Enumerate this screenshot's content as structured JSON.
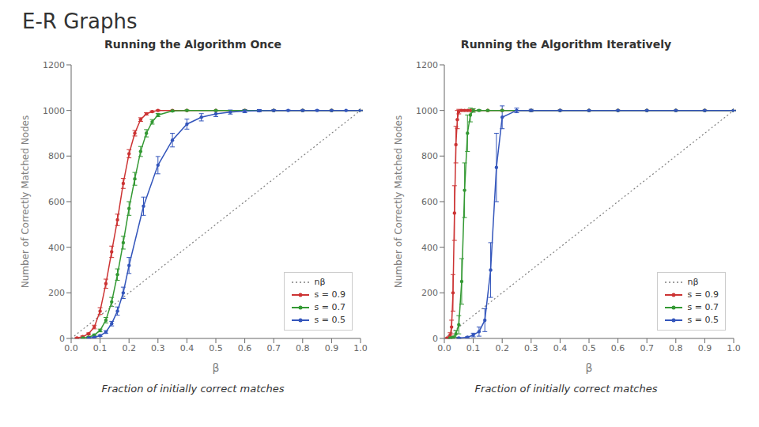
{
  "title": "E-R Graphs",
  "chart_data": [
    {
      "type": "line",
      "title": "Running the Algorithm Once",
      "xlabel": "β",
      "ylabel": "Number of Correctly Matched Nodes",
      "annotation": "Fraction of initially correct matches",
      "xlim": [
        0,
        1
      ],
      "ylim": [
        0,
        1200
      ],
      "xticks": [
        {
          "value": 0,
          "label": "0.0"
        },
        0.1,
        0.2,
        0.3,
        0.4,
        0.5,
        0.6,
        0.7,
        0.8,
        0.9,
        {
          "value": 1,
          "label": "1.0"
        }
      ],
      "yticks": [
        0,
        200,
        400,
        600,
        800,
        1000,
        1200
      ],
      "grid": false,
      "legend": "lower right",
      "series": [
        {
          "name": "nβ",
          "color": "gray",
          "line_style": "dotted",
          "marker": "none",
          "x": [
            0,
            1
          ],
          "values": [
            0,
            1000
          ]
        },
        {
          "name": "s = 0.9",
          "color": "#cc3333",
          "line_style": "solid",
          "marker": "circle",
          "x": [
            0.02,
            0.04,
            0.06,
            0.08,
            0.1,
            0.12,
            0.14,
            0.16,
            0.18,
            0.2,
            0.22,
            0.24,
            0.26,
            0.28,
            0.3,
            0.35,
            0.4,
            0.5,
            0.6,
            0.7,
            0.8,
            0.9,
            1.0
          ],
          "values": [
            2,
            8,
            20,
            50,
            120,
            240,
            380,
            520,
            680,
            810,
            900,
            960,
            985,
            995,
            1000,
            1000,
            1000,
            1000,
            1000,
            1000,
            1000,
            1000,
            1000
          ],
          "yerr": [
            2,
            3,
            4,
            8,
            15,
            20,
            25,
            25,
            22,
            18,
            12,
            8,
            5,
            3,
            2,
            1,
            1,
            1,
            1,
            1,
            1,
            1,
            1
          ]
        },
        {
          "name": "s = 0.7",
          "color": "#339933",
          "line_style": "solid",
          "marker": "circle",
          "x": [
            0.04,
            0.06,
            0.08,
            0.1,
            0.12,
            0.14,
            0.16,
            0.18,
            0.2,
            0.22,
            0.24,
            0.26,
            0.28,
            0.3,
            0.35,
            0.4,
            0.5,
            0.6,
            0.7,
            0.8,
            0.9,
            1.0
          ],
          "values": [
            2,
            5,
            15,
            35,
            80,
            160,
            280,
            420,
            570,
            700,
            820,
            900,
            950,
            980,
            998,
            1000,
            1000,
            1000,
            1000,
            1000,
            1000,
            1000
          ],
          "yerr": [
            1,
            2,
            4,
            6,
            12,
            20,
            25,
            28,
            30,
            28,
            22,
            16,
            10,
            7,
            3,
            2,
            1,
            1,
            1,
            1,
            1,
            1
          ]
        },
        {
          "name": "s = 0.5",
          "color": "#3355bb",
          "line_style": "solid",
          "marker": "circle",
          "x": [
            0.06,
            0.08,
            0.1,
            0.12,
            0.14,
            0.16,
            0.18,
            0.2,
            0.25,
            0.3,
            0.35,
            0.4,
            0.45,
            0.5,
            0.55,
            0.6,
            0.65,
            0.7,
            0.75,
            0.8,
            0.85,
            0.9,
            0.95,
            1.0
          ],
          "values": [
            2,
            5,
            12,
            28,
            65,
            120,
            200,
            320,
            580,
            760,
            870,
            940,
            970,
            985,
            993,
            997,
            999,
            1000,
            1000,
            1000,
            1000,
            1000,
            1000,
            1000
          ],
          "yerr": [
            1,
            2,
            3,
            6,
            10,
            18,
            25,
            35,
            40,
            38,
            30,
            22,
            16,
            12,
            9,
            7,
            5,
            3,
            2,
            2,
            2,
            1,
            1,
            1
          ]
        }
      ]
    },
    {
      "type": "line",
      "title": "Running the Algorithm Iteratively",
      "xlabel": "β",
      "ylabel": "Number of Correctly Matched Nodes",
      "annotation": "Fraction of initially correct matches",
      "xlim": [
        0,
        1
      ],
      "ylim": [
        0,
        1200
      ],
      "xticks": [
        {
          "value": 0,
          "label": "0.0"
        },
        0.1,
        0.2,
        0.3,
        0.4,
        0.5,
        0.6,
        0.7,
        0.8,
        0.9,
        {
          "value": 1,
          "label": "1.0"
        }
      ],
      "yticks": [
        0,
        200,
        400,
        600,
        800,
        1000,
        1200
      ],
      "grid": false,
      "legend": "lower right",
      "series": [
        {
          "name": "nβ",
          "color": "gray",
          "line_style": "dotted",
          "marker": "none",
          "x": [
            0,
            1
          ],
          "values": [
            0,
            1000
          ]
        },
        {
          "name": "s = 0.9",
          "color": "#cc3333",
          "line_style": "solid",
          "marker": "circle",
          "x": [
            0.01,
            0.02,
            0.025,
            0.03,
            0.035,
            0.04,
            0.045,
            0.05,
            0.06,
            0.07,
            0.08,
            0.09,
            0.1,
            0.15,
            0.2,
            0.3,
            0.4,
            0.5,
            0.6,
            0.7,
            0.8,
            0.9,
            1.0
          ],
          "values": [
            2,
            15,
            50,
            200,
            550,
            850,
            960,
            995,
            1000,
            1000,
            1000,
            1000,
            1000,
            1000,
            1000,
            1000,
            1000,
            1000,
            1000,
            1000,
            1000,
            1000,
            1000
          ],
          "yerr": [
            2,
            10,
            30,
            80,
            120,
            80,
            40,
            10,
            3,
            2,
            1,
            1,
            1,
            1,
            1,
            1,
            1,
            1,
            1,
            1,
            1,
            1,
            1
          ]
        },
        {
          "name": "s = 0.7",
          "color": "#339933",
          "line_style": "solid",
          "marker": "circle",
          "x": [
            0.02,
            0.03,
            0.04,
            0.05,
            0.06,
            0.07,
            0.08,
            0.09,
            0.1,
            0.12,
            0.15,
            0.2,
            0.3,
            0.4,
            0.5,
            0.6,
            0.7,
            0.8,
            0.9,
            1.0
          ],
          "values": [
            2,
            5,
            20,
            60,
            250,
            650,
            900,
            980,
            1000,
            1000,
            1000,
            1000,
            1000,
            1000,
            1000,
            1000,
            1000,
            1000,
            1000,
            1000
          ],
          "yerr": [
            2,
            4,
            15,
            40,
            100,
            120,
            80,
            30,
            8,
            3,
            1,
            1,
            1,
            1,
            1,
            1,
            1,
            1,
            1,
            1
          ]
        },
        {
          "name": "s = 0.5",
          "color": "#3355bb",
          "line_style": "solid",
          "marker": "circle",
          "x": [
            0.05,
            0.08,
            0.1,
            0.12,
            0.14,
            0.16,
            0.18,
            0.2,
            0.25,
            0.3,
            0.4,
            0.5,
            0.6,
            0.7,
            0.8,
            0.9,
            1.0
          ],
          "values": [
            2,
            5,
            15,
            30,
            80,
            300,
            750,
            970,
            1000,
            1000,
            1000,
            1000,
            1000,
            1000,
            1000,
            1000,
            1000
          ],
          "yerr": [
            2,
            3,
            8,
            20,
            50,
            120,
            150,
            50,
            10,
            5,
            2,
            1,
            1,
            1,
            1,
            1,
            1
          ]
        }
      ]
    }
  ]
}
